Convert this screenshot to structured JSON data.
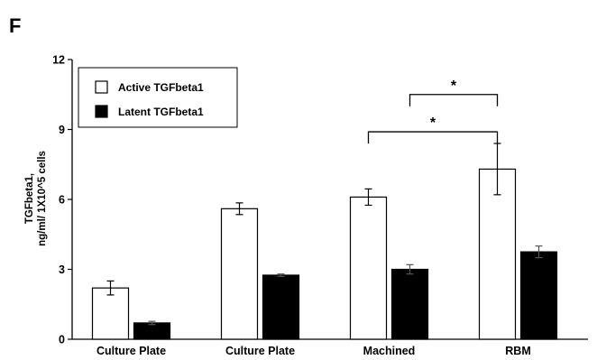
{
  "panel_label": "F",
  "chart_data": {
    "type": "bar",
    "title": "",
    "xlabel": "",
    "ylabel_lines": [
      "TGFbeta1,",
      "ng/ml/ 1X10^5 cells"
    ],
    "categories": [
      "Culture Plate",
      "Culture Plate",
      "Machined",
      "RBM"
    ],
    "ylim": [
      0,
      12
    ],
    "yticks": [
      0,
      3,
      6,
      9,
      12
    ],
    "grid": false,
    "legend_position": "top-left",
    "series": [
      {
        "name": "Active TGFbeta1",
        "color": "#ffffff",
        "stroke": "#000000",
        "values": [
          2.2,
          5.6,
          6.1,
          7.3
        ],
        "errors": [
          0.3,
          0.25,
          0.35,
          1.1
        ]
      },
      {
        "name": "Latent TGFbeta1",
        "color": "#000000",
        "stroke": "#000000",
        "values": [
          0.7,
          2.75,
          3.0,
          3.75
        ],
        "errors": [
          0.07,
          0.05,
          0.2,
          0.25
        ]
      }
    ],
    "annotations": [
      {
        "label": "*",
        "from": {
          "category": 2,
          "series": 0
        },
        "to": {
          "category": 3,
          "series": 0
        },
        "level": 8.9
      },
      {
        "label": "*",
        "from": {
          "category": 2,
          "series": 1
        },
        "to": {
          "category": 3,
          "series": 0
        },
        "level": 10.5
      }
    ]
  }
}
